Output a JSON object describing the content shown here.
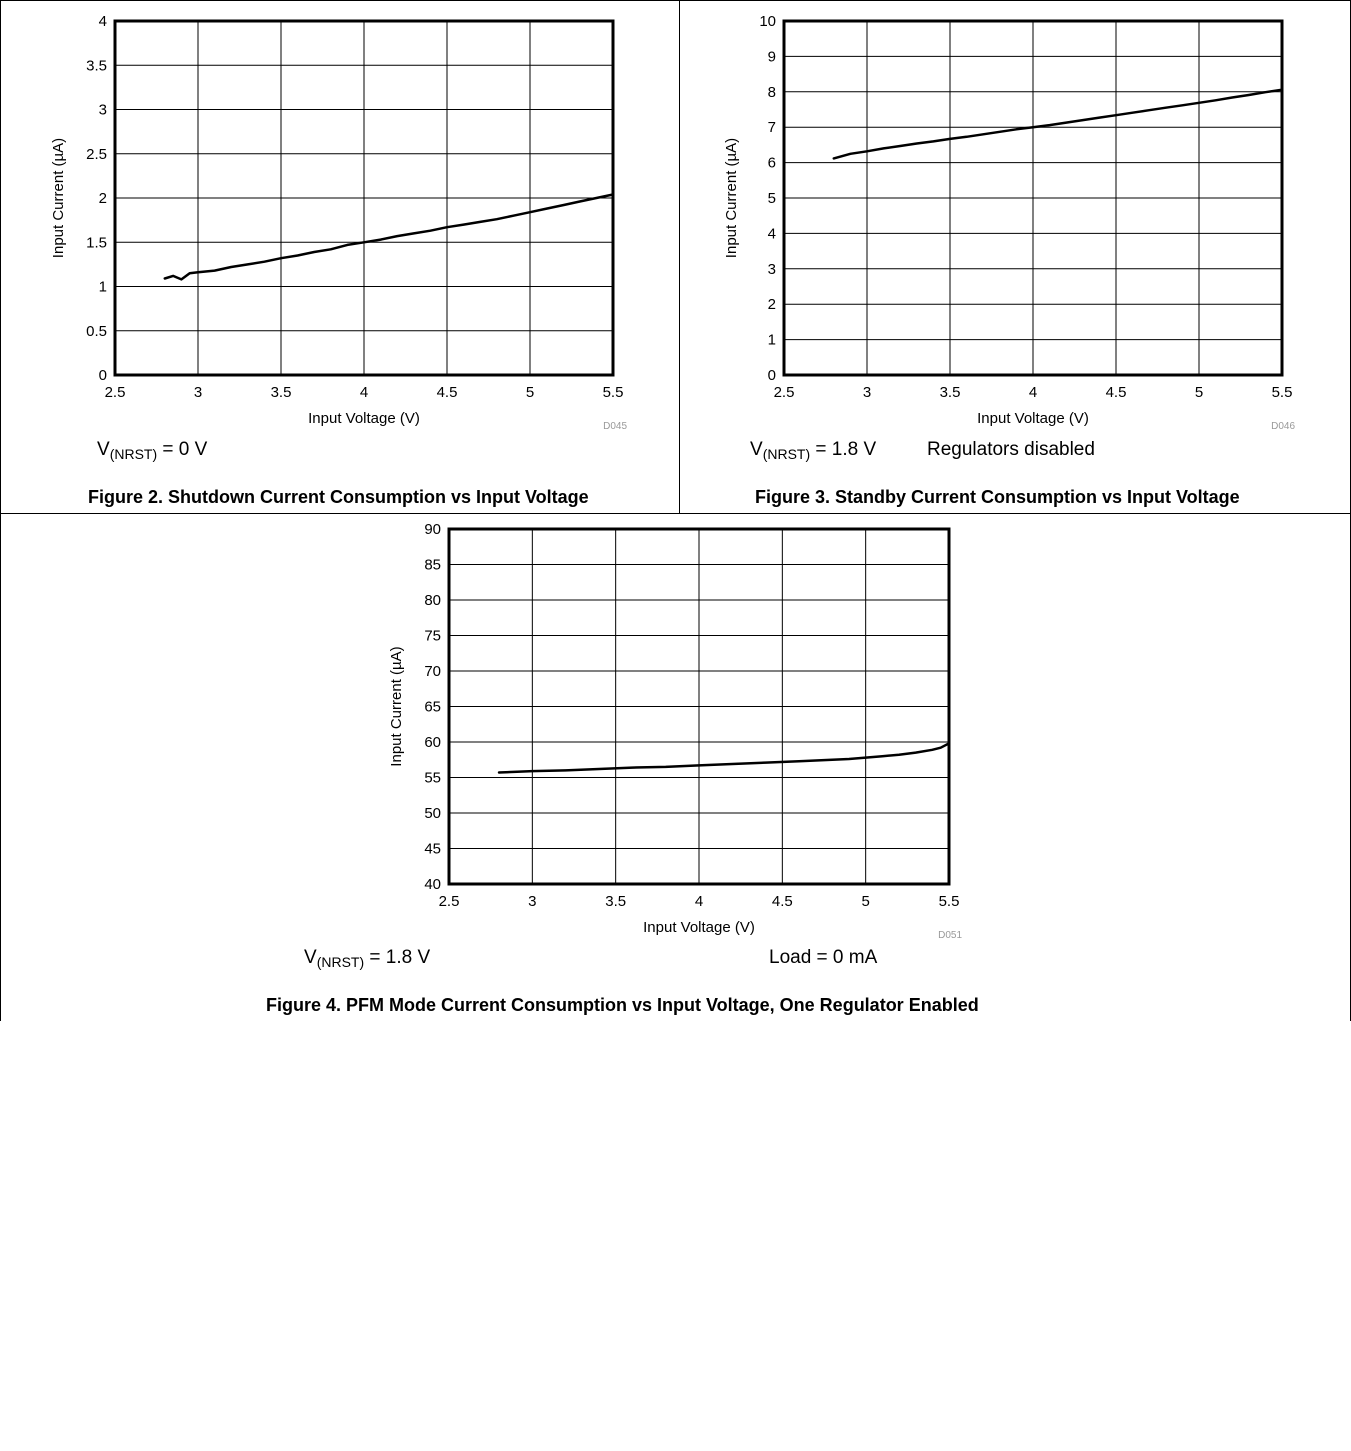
{
  "figures": [
    {
      "caption": "Figure 2. Shutdown Current Consumption vs Input Voltage",
      "code": "D045",
      "conditions": [
        {
          "main": "V",
          "sub": "(NRST)",
          "rest": " = 0 V"
        }
      ]
    },
    {
      "caption": "Figure 3. Standby Current Consumption vs Input Voltage",
      "code": "D046",
      "conditions": [
        {
          "main": "V",
          "sub": "(NRST)",
          "rest": " = 1.8 V"
        },
        {
          "main": "Regulators disabled",
          "sub": "",
          "rest": ""
        }
      ]
    },
    {
      "caption": "Figure 4. PFM Mode Current Consumption vs Input Voltage, One Regulator Enabled",
      "code": "D051",
      "conditions": [
        {
          "main": "V",
          "sub": "(NRST)",
          "rest": " = 1.8 V"
        },
        {
          "main": "Load = 0 mA",
          "sub": "",
          "rest": ""
        }
      ]
    }
  ],
  "chart_data": [
    {
      "type": "line",
      "xlabel": "Input Voltage (V)",
      "ylabel": "Input Current (µA)",
      "xlim": [
        2.5,
        5.5
      ],
      "ylim": [
        0,
        4
      ],
      "xticks": [
        2.5,
        3,
        3.5,
        4,
        4.5,
        5,
        5.5
      ],
      "xtick_labels": [
        "2.5",
        "3",
        "3.5",
        "4",
        "4.5",
        "5",
        "5.5"
      ],
      "yticks": [
        0,
        0.5,
        1,
        1.5,
        2,
        2.5,
        3,
        3.5,
        4
      ],
      "ytick_labels": [
        "0",
        "0.5",
        "1",
        "1.5",
        "2",
        "2.5",
        "3",
        "3.5",
        "4"
      ],
      "grid": true,
      "series": [
        {
          "x": [
            2.8,
            2.85,
            2.9,
            2.95,
            3.0,
            3.1,
            3.2,
            3.3,
            3.4,
            3.5,
            3.6,
            3.7,
            3.8,
            3.9,
            4.0,
            4.1,
            4.2,
            4.3,
            4.4,
            4.5,
            4.6,
            4.7,
            4.8,
            4.9,
            5.0,
            5.1,
            5.2,
            5.3,
            5.4,
            5.5
          ],
          "y": [
            1.09,
            1.12,
            1.08,
            1.15,
            1.16,
            1.18,
            1.22,
            1.25,
            1.28,
            1.32,
            1.35,
            1.39,
            1.42,
            1.47,
            1.5,
            1.53,
            1.57,
            1.6,
            1.63,
            1.67,
            1.7,
            1.73,
            1.76,
            1.8,
            1.84,
            1.88,
            1.92,
            1.96,
            2.0,
            2.04
          ]
        }
      ]
    },
    {
      "type": "line",
      "xlabel": "Input Voltage (V)",
      "ylabel": "Input Current (µA)",
      "xlim": [
        2.5,
        5.5
      ],
      "ylim": [
        0,
        10
      ],
      "xticks": [
        2.5,
        3,
        3.5,
        4,
        4.5,
        5,
        5.5
      ],
      "xtick_labels": [
        "2.5",
        "3",
        "3.5",
        "4",
        "4.5",
        "5",
        "5.5"
      ],
      "yticks": [
        0,
        1,
        2,
        3,
        4,
        5,
        6,
        7,
        8,
        9,
        10
      ],
      "ytick_labels": [
        "0",
        "1",
        "2",
        "3",
        "4",
        "5",
        "6",
        "7",
        "8",
        "9",
        "10"
      ],
      "grid": true,
      "series": [
        {
          "x": [
            2.8,
            2.9,
            3.0,
            3.1,
            3.2,
            3.3,
            3.4,
            3.5,
            3.6,
            3.7,
            3.8,
            3.9,
            4.0,
            4.1,
            4.2,
            4.3,
            4.4,
            4.5,
            4.6,
            4.7,
            4.8,
            4.9,
            5.0,
            5.1,
            5.2,
            5.3,
            5.4,
            5.5
          ],
          "y": [
            6.12,
            6.25,
            6.32,
            6.4,
            6.47,
            6.54,
            6.6,
            6.67,
            6.73,
            6.8,
            6.87,
            6.94,
            7.0,
            7.06,
            7.13,
            7.2,
            7.27,
            7.34,
            7.41,
            7.48,
            7.55,
            7.62,
            7.69,
            7.76,
            7.84,
            7.91,
            7.99,
            8.06
          ]
        }
      ]
    },
    {
      "type": "line",
      "xlabel": "Input Voltage (V)",
      "ylabel": "Input Current (µA)",
      "xlim": [
        2.5,
        5.5
      ],
      "ylim": [
        40,
        90
      ],
      "xticks": [
        2.5,
        3,
        3.5,
        4,
        4.5,
        5,
        5.5
      ],
      "xtick_labels": [
        "2.5",
        "3",
        "3.5",
        "4",
        "4.5",
        "5",
        "5.5"
      ],
      "yticks": [
        40,
        45,
        50,
        55,
        60,
        65,
        70,
        75,
        80,
        85,
        90
      ],
      "ytick_labels": [
        "40",
        "45",
        "50",
        "55",
        "60",
        "65",
        "70",
        "75",
        "80",
        "85",
        "90"
      ],
      "grid": true,
      "series": [
        {
          "x": [
            2.8,
            3.0,
            3.2,
            3.4,
            3.6,
            3.8,
            4.0,
            4.2,
            4.4,
            4.6,
            4.8,
            4.9,
            5.0,
            5.1,
            5.2,
            5.3,
            5.4,
            5.45,
            5.5
          ],
          "y": [
            55.7,
            55.9,
            56.0,
            56.2,
            56.4,
            56.5,
            56.7,
            56.9,
            57.1,
            57.3,
            57.5,
            57.6,
            57.8,
            58.0,
            58.2,
            58.5,
            58.9,
            59.2,
            59.8
          ]
        }
      ]
    }
  ]
}
